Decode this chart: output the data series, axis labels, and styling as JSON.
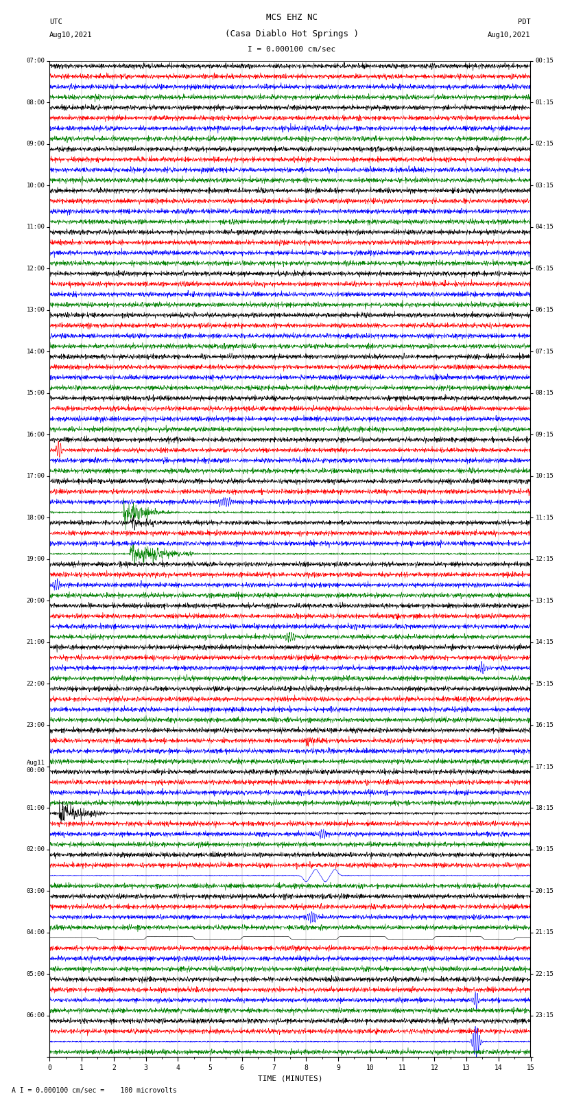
{
  "title_line1": "MCS EHZ NC",
  "title_line2": "(Casa Diablo Hot Springs )",
  "scale_text": "I = 0.000100 cm/sec",
  "footer_text": "A I = 0.000100 cm/sec =    100 microvolts",
  "left_label_line1": "UTC",
  "left_label_line2": "Aug10,2021",
  "right_label_line1": "PDT",
  "right_label_line2": "Aug10,2021",
  "xlabel": "TIME (MINUTES)",
  "bg_color": "#ffffff",
  "colors": [
    "black",
    "red",
    "blue",
    "green"
  ],
  "utc_labels": [
    "07:00",
    "08:00",
    "09:00",
    "10:00",
    "11:00",
    "12:00",
    "13:00",
    "14:00",
    "15:00",
    "16:00",
    "17:00",
    "18:00",
    "19:00",
    "20:00",
    "21:00",
    "22:00",
    "23:00",
    "Aug11\n00:00",
    "01:00",
    "02:00",
    "03:00",
    "04:00",
    "05:00",
    "06:00"
  ],
  "pdt_labels": [
    "00:15",
    "01:15",
    "02:15",
    "03:15",
    "04:15",
    "05:15",
    "06:15",
    "07:15",
    "08:15",
    "09:15",
    "10:15",
    "11:15",
    "12:15",
    "13:15",
    "14:15",
    "15:15",
    "16:15",
    "17:15",
    "18:15",
    "19:15",
    "20:15",
    "21:15",
    "22:15",
    "23:15"
  ],
  "num_groups": 24,
  "x_min": 0,
  "x_max": 15,
  "figsize": [
    8.5,
    16.13
  ],
  "dpi": 100
}
